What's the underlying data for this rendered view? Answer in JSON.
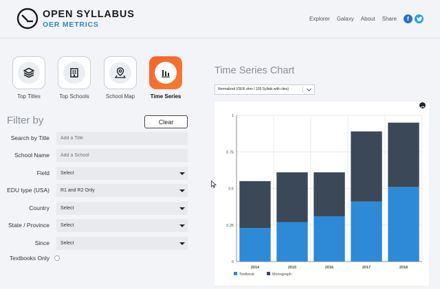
{
  "brand": {
    "title": "OPEN SYLLABUS",
    "subtitle": "OER METRICS"
  },
  "nav": {
    "links": [
      "Explorer",
      "Galaxy",
      "About",
      "Share"
    ],
    "facebook": "f",
    "twitter": "t"
  },
  "views": [
    {
      "label": "Top Titles",
      "icon": "books-stack-icon",
      "active": false
    },
    {
      "label": "Top Schools",
      "icon": "school-building-icon",
      "active": false
    },
    {
      "label": "School Map",
      "icon": "map-pin-icon",
      "active": false
    },
    {
      "label": "Time Series",
      "icon": "bar-chart-icon",
      "active": true
    }
  ],
  "filters": {
    "title": "Filter by",
    "clear_label": "Clear",
    "title_label": "Search by Title",
    "title_placeholder": "Add a Title",
    "school_label": "School Name",
    "school_placeholder": "Add a School",
    "field_label": "Field",
    "field_value": "Select",
    "edu_label": "EDU type (USA)",
    "edu_value": "R1 and R2 Only",
    "country_label": "Country",
    "country_value": "Select",
    "state_label": "State / Province",
    "state_value": "Select",
    "since_label": "Since",
    "since_value": "Select",
    "textbooks_label": "Textbooks Only"
  },
  "chart_section": {
    "title": "Time Series Chart",
    "metric": "Normalized (OER cites / 100 Syllabi with cites)"
  },
  "colors": {
    "textbook": "#2e89d6",
    "monograph": "#3b4858",
    "accent": "#f7632a",
    "link": "#2c86cf"
  },
  "chart_data": {
    "type": "bar",
    "stacked": true,
    "categories": [
      "2014",
      "2015",
      "2016",
      "2017",
      "2018"
    ],
    "series": [
      {
        "name": "Textbook",
        "values": [
          0.23,
          0.27,
          0.31,
          0.41,
          0.51
        ]
      },
      {
        "name": "Monograph",
        "values": [
          0.32,
          0.34,
          0.3,
          0.48,
          0.44
        ]
      }
    ],
    "ylim": [
      0,
      1
    ],
    "yticks": [
      "0",
      "0.25",
      "0.5",
      "0.75",
      "1"
    ],
    "legend_position": "bottom-left",
    "grid": true
  }
}
